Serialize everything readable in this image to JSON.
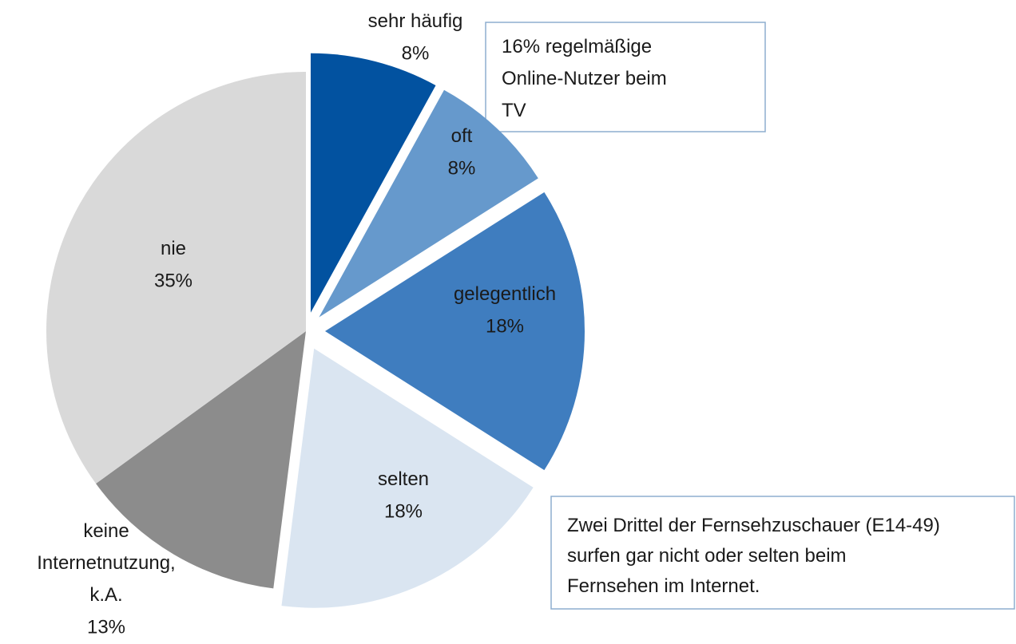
{
  "chart_data": {
    "type": "pie",
    "categories": [
      "sehr häufig",
      "oft",
      "gelegentlich",
      "selten",
      "keine Internetnutzung, k.A.",
      "nie"
    ],
    "values": [
      8,
      8,
      18,
      18,
      13,
      35
    ],
    "value_labels": [
      "8%",
      "8%",
      "18%",
      "18%",
      "13%",
      "35%"
    ],
    "colors": [
      "#0252a0",
      "#6699cc",
      "#3f7dbf",
      "#dae5f1",
      "#8c8c8c",
      "#d9d9d9"
    ],
    "exploded": [
      true,
      true,
      true,
      true,
      false,
      false
    ],
    "annotations": [
      "16% regelmäßige Online-Nutzer beim TV",
      "Zwei Drittel der Fernsehzuschauer (E14-49) surfen gar nicht oder selten beim Fernsehen im Internet."
    ]
  }
}
